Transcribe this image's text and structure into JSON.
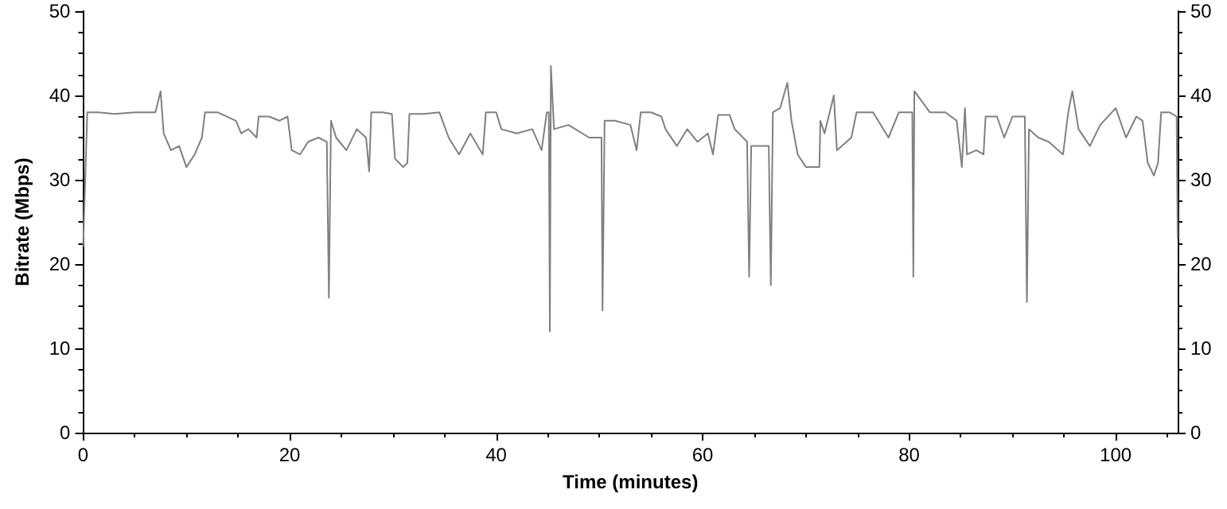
{
  "chart_data": {
    "type": "line",
    "xlabel": "Time (minutes)",
    "ylabel": "Bitrate (Mbps)",
    "xlim": [
      0,
      106
    ],
    "xticks": [
      0,
      20,
      40,
      60,
      80,
      100
    ],
    "ylim": [
      0,
      50
    ],
    "yticks": [
      0,
      10,
      20,
      30,
      40,
      50
    ],
    "y2lim": [
      0,
      50
    ],
    "y2ticks": [
      0,
      10,
      20,
      30,
      40,
      50
    ],
    "grid": false,
    "marker": "none",
    "line_style": "solid",
    "series": [
      {
        "color": "#808080",
        "x": [
          0,
          0.2,
          0.4,
          1.5,
          3,
          5,
          7,
          7.5,
          7.8,
          8.5,
          9.3,
          10,
          10.8,
          11.5,
          11.8,
          13,
          14.8,
          15.3,
          16,
          16.8,
          17,
          18,
          19,
          19.8,
          20.2,
          21,
          21.8,
          22.8,
          23.6,
          23.8,
          24,
          24.5,
          25.5,
          26.5,
          27.4,
          27.7,
          27.9,
          29,
          29.9,
          30.2,
          31,
          31.4,
          31.6,
          33,
          34.5,
          35.4,
          36.4,
          37.5,
          38.7,
          39,
          40,
          40.5,
          42,
          43.5,
          44.4,
          44.9,
          45.1,
          45.2,
          45.3,
          45.6,
          47,
          49,
          50.2,
          50.3,
          50.5,
          51.5,
          53,
          53.6,
          54,
          55,
          56,
          56.4,
          57.5,
          58.5,
          59.5,
          60.5,
          61,
          61.5,
          62.6,
          63.1,
          64.3,
          64.5,
          64.7,
          65.5,
          66.4,
          66.6,
          66.8,
          67.5,
          68.2,
          68.6,
          69.2,
          70,
          71.3,
          71.4,
          71.8,
          72.7,
          73,
          74.4,
          74.9,
          76.5,
          78,
          79,
          80.3,
          80.4,
          80.5,
          82,
          83.5,
          84.6,
          85.1,
          85.4,
          85.6,
          86.5,
          87.2,
          87.4,
          88.5,
          89.2,
          90,
          91.2,
          91.4,
          91.6,
          92.5,
          93.5,
          94.9,
          95.4,
          95.8,
          96.4,
          97.5,
          98.5,
          100,
          101,
          102,
          102.6,
          103.1,
          103.7,
          104.1,
          104.4,
          105.2,
          105.9,
          106
        ],
        "values": [
          22,
          30,
          38,
          38,
          37.8,
          38,
          38,
          40.5,
          35.5,
          33.5,
          34,
          31.5,
          33,
          35,
          38,
          38,
          37,
          35.5,
          36,
          35,
          37.5,
          37.5,
          37,
          37.5,
          33.5,
          33,
          34.5,
          35,
          34.5,
          16,
          37,
          35,
          33.5,
          36,
          35,
          31,
          38,
          38,
          37.8,
          32.5,
          31.5,
          32,
          37.8,
          37.8,
          38,
          35,
          33,
          35.5,
          33,
          38,
          38,
          36,
          35.5,
          36,
          33.5,
          38,
          38,
          12,
          43.5,
          36,
          36.5,
          35,
          35,
          14.5,
          37,
          37,
          36.5,
          33.5,
          38,
          38,
          37.5,
          36,
          34,
          36,
          34.5,
          35.5,
          33,
          37.7,
          37.7,
          36,
          34.5,
          18.5,
          34,
          34,
          34,
          17.5,
          38,
          38.5,
          41.5,
          37,
          33,
          31.5,
          31.5,
          37,
          35.5,
          40,
          33.5,
          35,
          38,
          38,
          35,
          38,
          38,
          18.5,
          40.5,
          38,
          38,
          37,
          31.5,
          38.5,
          33,
          33.5,
          33,
          37.5,
          37.5,
          35,
          37.5,
          37.5,
          15.5,
          36,
          35,
          34.5,
          33,
          38,
          40.5,
          36,
          34,
          36.5,
          38.5,
          35,
          37.5,
          37,
          32,
          30.5,
          32,
          38,
          38,
          37.5,
          23
        ]
      }
    ]
  }
}
